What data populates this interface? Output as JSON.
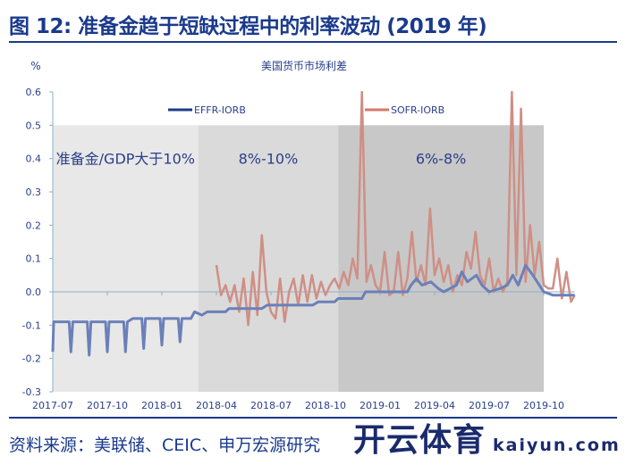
{
  "title": "图 12: 准备金趋于短缺过程中的利率波动 (2019 年)",
  "source": "资料来源：美联储、CEIC、申万宏源研究",
  "watermark": {
    "name": "开云体育",
    "url": "kaiyun.com"
  },
  "chart_data": {
    "type": "line",
    "title": "美国货币市场利差",
    "ylabel": "%",
    "xlabel": "",
    "ylim": [
      -0.3,
      0.6
    ],
    "yticks": [
      "0.6",
      "0.5",
      "0.4",
      "0.3",
      "0.2",
      "0.1",
      "0.0",
      "-0.1",
      "-0.2",
      "-0.3"
    ],
    "ytick_values": [
      0.6,
      0.5,
      0.4,
      0.3,
      0.2,
      0.1,
      0.0,
      -0.1,
      -0.2,
      -0.3
    ],
    "x_unit": "months since 2017-07",
    "xlim": [
      0,
      28.7
    ],
    "xticks": [
      "2017-07",
      "2017-10",
      "2018-01",
      "2018-04",
      "2018-07",
      "2018-10",
      "2019-01",
      "2019-04",
      "2019-07",
      "2019-10"
    ],
    "xtick_values": [
      0,
      3,
      6,
      9,
      12,
      15,
      18,
      21,
      24,
      27
    ],
    "grid": false,
    "legend": "top",
    "regions": [
      {
        "label": "准备金/GDP大于10%",
        "x": [
          0,
          8
        ],
        "y": [
          -0.3,
          0.5
        ],
        "color": "#e8e8e8"
      },
      {
        "label": "8%-10%",
        "x": [
          8,
          15.7
        ],
        "y": [
          -0.3,
          0.5
        ],
        "color": "#dadada"
      },
      {
        "label": "6%-8%",
        "x": [
          15.7,
          27
        ],
        "y": [
          -0.3,
          0.5
        ],
        "color": "#c8c8c8"
      }
    ],
    "series": [
      {
        "name": "EFFR-IORB",
        "color": "#6b80b8",
        "legend_color": "#1f3c8c",
        "points": [
          [
            0,
            -0.18
          ],
          [
            0.05,
            -0.09
          ],
          [
            0.9,
            -0.09
          ],
          [
            1,
            -0.18
          ],
          [
            1.1,
            -0.09
          ],
          [
            1.9,
            -0.09
          ],
          [
            2,
            -0.19
          ],
          [
            2.1,
            -0.09
          ],
          [
            2.9,
            -0.09
          ],
          [
            3,
            -0.18
          ],
          [
            3.1,
            -0.09
          ],
          [
            3.9,
            -0.09
          ],
          [
            4,
            -0.18
          ],
          [
            4.1,
            -0.09
          ],
          [
            4.4,
            -0.08
          ],
          [
            4.9,
            -0.08
          ],
          [
            5,
            -0.17
          ],
          [
            5.1,
            -0.08
          ],
          [
            5.9,
            -0.08
          ],
          [
            6,
            -0.16
          ],
          [
            6.1,
            -0.08
          ],
          [
            6.9,
            -0.08
          ],
          [
            7,
            -0.15
          ],
          [
            7.1,
            -0.08
          ],
          [
            7.6,
            -0.08
          ],
          [
            7.8,
            -0.06
          ],
          [
            8.2,
            -0.07
          ],
          [
            8.5,
            -0.06
          ],
          [
            9.5,
            -0.06
          ],
          [
            9.7,
            -0.05
          ],
          [
            11.5,
            -0.05
          ],
          [
            11.8,
            -0.04
          ],
          [
            13,
            -0.04
          ],
          [
            14.3,
            -0.04
          ],
          [
            14.6,
            -0.03
          ],
          [
            15.5,
            -0.03
          ],
          [
            15.7,
            -0.02
          ],
          [
            17,
            -0.02
          ],
          [
            17.2,
            0
          ],
          [
            19.5,
            0
          ],
          [
            19.7,
            0.02
          ],
          [
            20,
            0.04
          ],
          [
            20.3,
            0.02
          ],
          [
            20.8,
            0.03
          ],
          [
            21.2,
            0.01
          ],
          [
            21.5,
            0.0
          ],
          [
            22.2,
            0.02
          ],
          [
            22.5,
            0.06
          ],
          [
            22.8,
            0.03
          ],
          [
            23.3,
            0.05
          ],
          [
            23.6,
            0.02
          ],
          [
            24,
            0.0
          ],
          [
            24.6,
            0.01
          ],
          [
            25,
            0.02
          ],
          [
            25.3,
            0.05
          ],
          [
            25.6,
            0.02
          ],
          [
            26,
            0.08
          ],
          [
            26.4,
            0.05
          ],
          [
            27,
            0.0
          ],
          [
            27.5,
            -0.01
          ],
          [
            28.7,
            -0.01
          ]
        ]
      },
      {
        "name": "SOFR-IORB",
        "color": "#cf8f85",
        "legend_color": "#d27a6a",
        "points": [
          [
            9,
            0.08
          ],
          [
            9.25,
            -0.01
          ],
          [
            9.5,
            0.02
          ],
          [
            9.75,
            -0.03
          ],
          [
            10,
            0.02
          ],
          [
            10.25,
            -0.06
          ],
          [
            10.5,
            0.04
          ],
          [
            10.75,
            -0.1
          ],
          [
            11,
            0.06
          ],
          [
            11.25,
            -0.07
          ],
          [
            11.5,
            0.17
          ],
          [
            11.75,
            0.0
          ],
          [
            12,
            -0.06
          ],
          [
            12.25,
            -0.08
          ],
          [
            12.5,
            0.04
          ],
          [
            12.75,
            -0.09
          ],
          [
            13,
            0.0
          ],
          [
            13.25,
            0.04
          ],
          [
            13.5,
            -0.04
          ],
          [
            13.75,
            0.05
          ],
          [
            14,
            -0.03
          ],
          [
            14.25,
            0.05
          ],
          [
            14.5,
            -0.02
          ],
          [
            14.75,
            0.03
          ],
          [
            15,
            -0.01
          ],
          [
            15.25,
            0.02
          ],
          [
            15.5,
            0.04
          ],
          [
            15.75,
            0.01
          ],
          [
            16,
            0.06
          ],
          [
            16.25,
            0.02
          ],
          [
            16.5,
            0.1
          ],
          [
            16.75,
            0.04
          ],
          [
            17,
            0.6
          ],
          [
            17.25,
            0.03
          ],
          [
            17.5,
            0.08
          ],
          [
            17.75,
            0.02
          ],
          [
            18,
            0.0
          ],
          [
            18.25,
            0.12
          ],
          [
            18.5,
            -0.01
          ],
          [
            18.75,
            0.0
          ],
          [
            19,
            0.12
          ],
          [
            19.25,
            -0.01
          ],
          [
            19.5,
            0.04
          ],
          [
            19.75,
            0.18
          ],
          [
            20,
            0.03
          ],
          [
            20.25,
            0.08
          ],
          [
            20.5,
            0.02
          ],
          [
            20.75,
            0.25
          ],
          [
            21,
            0.05
          ],
          [
            21.25,
            0.1
          ],
          [
            21.5,
            0.03
          ],
          [
            21.75,
            0.08
          ],
          [
            22,
            0.0
          ],
          [
            22.25,
            0.05
          ],
          [
            22.5,
            0.02
          ],
          [
            22.75,
            0.12
          ],
          [
            23,
            0.07
          ],
          [
            23.25,
            0.18
          ],
          [
            23.5,
            0.05
          ],
          [
            23.75,
            0.02
          ],
          [
            24,
            0.1
          ],
          [
            24.25,
            0.0
          ],
          [
            24.5,
            0.04
          ],
          [
            24.75,
            0.0
          ],
          [
            25,
            0.03
          ],
          [
            25.25,
            0.6
          ],
          [
            25.5,
            0.05
          ],
          [
            25.75,
            0.55
          ],
          [
            26,
            0.03
          ],
          [
            26.25,
            0.2
          ],
          [
            26.5,
            0.05
          ],
          [
            26.75,
            0.15
          ],
          [
            27,
            0.02
          ],
          [
            27.25,
            0.01
          ],
          [
            27.5,
            0.01
          ],
          [
            27.75,
            0.1
          ],
          [
            28,
            -0.02
          ],
          [
            28.25,
            0.06
          ],
          [
            28.5,
            -0.03
          ],
          [
            28.7,
            -0.01
          ]
        ]
      }
    ]
  }
}
